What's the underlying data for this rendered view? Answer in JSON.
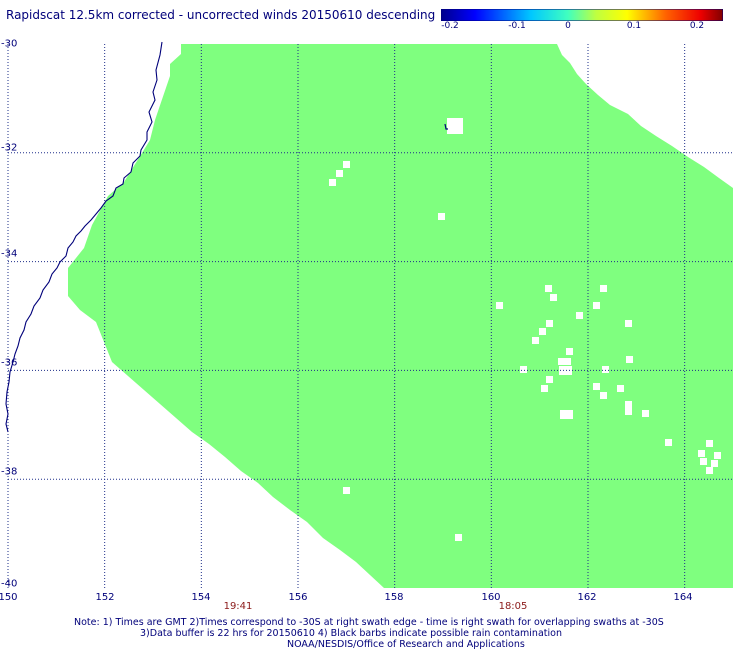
{
  "title": "Rapidscat 12.5km corrected - uncorrected winds 20150610 descending",
  "colorbar": {
    "ticks": [
      "-0.2",
      "-0.1",
      "0",
      "0.1",
      "0.2"
    ],
    "colors": [
      "#00008b",
      "#0000ff",
      "#00bfff",
      "#7fff7f",
      "#ffff00",
      "#ff8c00",
      "#ff0000",
      "#8b0000"
    ]
  },
  "map": {
    "lon_range": [
      150,
      165
    ],
    "lat_range": [
      -40,
      -30
    ],
    "xticks": [
      "150",
      "152",
      "154",
      "156",
      "158",
      "160",
      "162",
      "164"
    ],
    "yticks": [
      "-30",
      "-32",
      "-34",
      "-36",
      "-38",
      "-40"
    ],
    "field_color": "#7fff7f",
    "coast_color": "#00007a",
    "grid": true,
    "value": 0
  },
  "times": [
    {
      "lon": 154.9,
      "label": "19:41"
    },
    {
      "lon": 160.75,
      "label": "18:05"
    }
  ],
  "notes": {
    "line1": "Note: 1) Times are GMT 2)Times correspond to -30S at right swath edge - time is right swath for overlapping swaths at -30S",
    "line2": "3)Data buffer is 22 hrs for 20150610 4) Black barbs indicate possible rain contamination",
    "line3": "NOAA/NESDIS/Office of Research and Applications"
  }
}
